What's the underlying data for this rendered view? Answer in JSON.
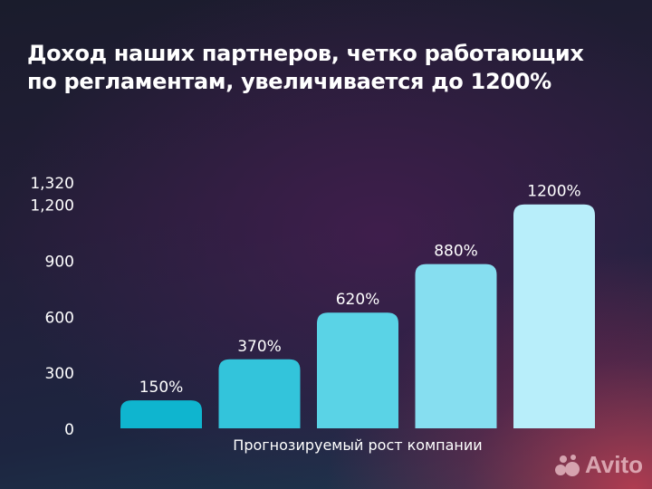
{
  "title_line1": "Доход наших партнеров, четко работающих",
  "title_line2": "по регламентам, увеличивается до 1200%",
  "watermark": "Avito",
  "chart_data": {
    "type": "bar",
    "title": "Доход наших партнеров, четко работающих по регламентам, увеличивается до 1200%",
    "xlabel": "Прогнозируемый рост компании",
    "ylabel": "",
    "ylim": [
      0,
      1320
    ],
    "yticks": [
      0,
      300,
      600,
      900,
      1200,
      1320
    ],
    "ytick_labels": [
      "0",
      "300",
      "600",
      "900",
      "1,200",
      "1,320"
    ],
    "grid": false,
    "values": [
      150,
      370,
      620,
      880,
      1200
    ],
    "data_labels": [
      "150%",
      "370%",
      "620%",
      "880%",
      "1200%"
    ],
    "colors": [
      "#0fb5cf",
      "#33c4db",
      "#5ad3e6",
      "#86def0",
      "#b8eefa"
    ]
  }
}
